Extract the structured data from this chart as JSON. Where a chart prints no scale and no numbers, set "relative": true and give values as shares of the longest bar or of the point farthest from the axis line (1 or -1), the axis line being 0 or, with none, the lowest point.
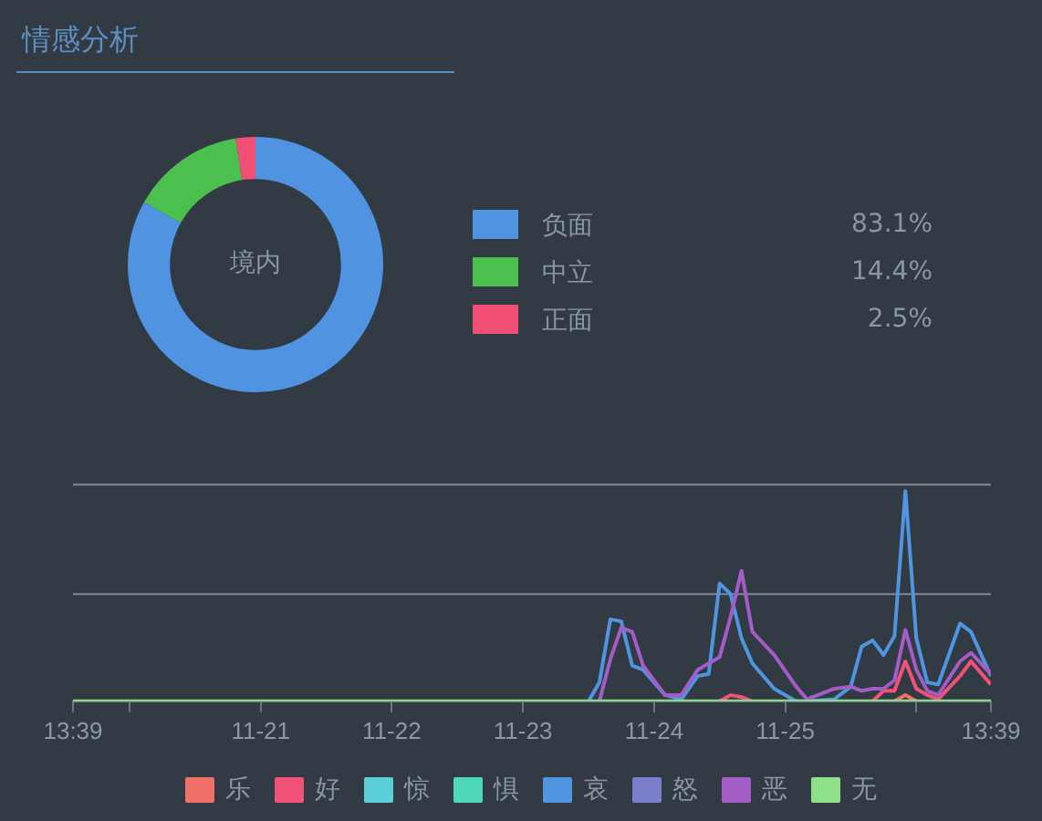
{
  "chart_data": [
    {
      "type": "donut",
      "title": "情感分析",
      "categories": [
        "负面",
        "中立",
        "正面"
      ],
      "values": [
        83.1,
        14.4,
        2.5
      ],
      "colors": [
        "#4f93e1",
        "#4cc04f",
        "#f24f77"
      ],
      "value_labels": [
        "83.1%",
        "14.4%",
        "2.5%"
      ],
      "legend": "right",
      "annotations": [
        "境内"
      ]
    },
    {
      "type": "line",
      "relative": true,
      "ref_lines": [
        {
          "axis": "y",
          "value": 0.51,
          "color": "#7f8a95"
        },
        {
          "axis": "y",
          "value": 1.03,
          "color": "#7f8a95"
        }
      ],
      "legend": "bottom",
      "marker": "none",
      "line_style": "solid",
      "x": [
        "--11-19T13:39",
        "--11-23T12:00",
        "--11-23T14:00",
        "--11-23T16:00",
        "--11-23T18:00",
        "--11-23T20:00",
        "--11-23T22:00",
        "--11-24T02:00",
        "--11-24T05:00",
        "--11-24T08:00",
        "--11-24T10:00",
        "--11-24T12:00",
        "--11-24T14:00",
        "--11-24T16:00",
        "--11-24T18:00",
        "--11-24T22:00",
        "--11-25T02:00",
        "--11-25T04:00",
        "--11-25T09:00",
        "--11-25T12:00",
        "--11-25T14:00",
        "--11-25T16:00",
        "--11-25T18:00",
        "--11-25T20:00",
        "--11-25T22:00",
        "--11-26T00:00",
        "--11-26T02:00",
        "--11-26T04:00",
        "--11-26T08:00",
        "--11-26T10:00",
        "--11-26T13:39"
      ],
      "xlim": [
        "--11-19T13:39",
        "--11-26T13:39"
      ],
      "xticks": [
        {
          "value": "--11-19T13:39",
          "label": "13:39"
        },
        {
          "value": "--11-20",
          "label": null
        },
        {
          "value": "--11-21",
          "label": "11-21"
        },
        {
          "value": "--11-22",
          "label": "11-22"
        },
        {
          "value": "--11-23",
          "label": "11-23"
        },
        {
          "value": "--11-24",
          "label": "11-24"
        },
        {
          "value": "--11-25",
          "label": "11-25"
        },
        {
          "value": "--11-26",
          "label": null
        },
        {
          "value": "--11-26T13:39",
          "label": "13:39"
        }
      ],
      "series": [
        {
          "name": "乐",
          "color": "#f0706a",
          "values": [
            null,
            null,
            null,
            null,
            null,
            null,
            null,
            null,
            null,
            null,
            null,
            null,
            null,
            null,
            null,
            null,
            null,
            null,
            null,
            null,
            null,
            null,
            null,
            0,
            0.03,
            0,
            null,
            null,
            null,
            null,
            null
          ]
        },
        {
          "name": "好",
          "color": "#f25277",
          "values": [
            null,
            null,
            null,
            null,
            null,
            null,
            null,
            null,
            null,
            null,
            null,
            0,
            0.03,
            0.02,
            0,
            null,
            null,
            null,
            null,
            null,
            null,
            0,
            0.05,
            0.05,
            0.19,
            0.06,
            0.03,
            0.01,
            0.12,
            0.19,
            0.08
          ]
        },
        {
          "name": "惊",
          "color": "#5bcfd8",
          "values": [
            null,
            null,
            null,
            null,
            null,
            null,
            null,
            null,
            null,
            null,
            null,
            null,
            null,
            null,
            null,
            null,
            null,
            null,
            null,
            null,
            null,
            null,
            null,
            null,
            null,
            null,
            null,
            null,
            null,
            null,
            null
          ]
        },
        {
          "name": "惧",
          "color": "#4ed8b8",
          "values": [
            null,
            null,
            null,
            null,
            null,
            null,
            null,
            null,
            null,
            null,
            null,
            null,
            null,
            null,
            null,
            null,
            null,
            null,
            null,
            null,
            null,
            null,
            null,
            null,
            null,
            null,
            null,
            null,
            null,
            null,
            null
          ]
        },
        {
          "name": "哀",
          "color": "#4f95e0",
          "values": [
            null,
            0,
            0.09,
            0.39,
            0.38,
            0.17,
            0.15,
            0.03,
            0.01,
            0.12,
            0.13,
            0.56,
            0.51,
            0.3,
            0.18,
            0.06,
            0,
            0,
            0.01,
            0.07,
            0.26,
            0.29,
            0.22,
            0.31,
            1,
            0.3,
            0.09,
            0.08,
            0.37,
            0.33,
            0.12
          ]
        },
        {
          "name": "怒",
          "color": "#7b7fcb",
          "values": [
            null,
            null,
            null,
            null,
            null,
            null,
            null,
            null,
            null,
            null,
            null,
            null,
            null,
            null,
            null,
            null,
            null,
            null,
            null,
            null,
            null,
            null,
            null,
            null,
            null,
            null,
            null,
            null,
            null,
            null,
            null
          ]
        },
        {
          "name": "恶",
          "color": "#a45cc6",
          "values": [
            null,
            null,
            0,
            0.2,
            0.35,
            0.33,
            0.17,
            0.03,
            0.03,
            0.15,
            0.18,
            0.21,
            0.4,
            0.62,
            0.33,
            0.22,
            0.07,
            0.01,
            0.06,
            0.07,
            0.05,
            0.06,
            0.06,
            0.1,
            0.34,
            0.15,
            0.05,
            0.03,
            0.19,
            0.23,
            0.13
          ]
        },
        {
          "name": "无",
          "color": "#90e08a",
          "values": [
            0,
            0,
            0,
            0,
            0,
            0,
            0,
            0,
            0,
            0,
            0,
            0,
            0,
            0,
            0,
            0,
            0,
            0,
            0,
            0,
            0,
            0,
            0,
            0,
            0,
            0,
            0,
            0,
            0,
            0,
            0
          ]
        }
      ]
    }
  ]
}
